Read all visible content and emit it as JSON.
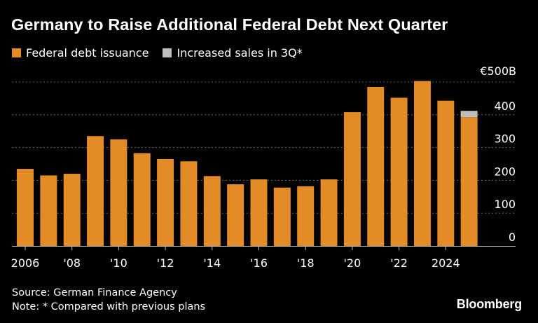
{
  "title": "Germany to Raise Additional Federal Debt Next Quarter",
  "legend": [
    {
      "label": "Federal debt issuance",
      "color": "#E38B26"
    },
    {
      "label": "Increased sales in 3Q*",
      "color": "#BDBDBD"
    }
  ],
  "footer": {
    "source": "Source: German Finance Agency",
    "note": "Note: * Compared with previous plans"
  },
  "brand": "Bloomberg",
  "chart_data": {
    "type": "bar",
    "stacked": true,
    "unit_label": "€500B",
    "categories": [
      "2006",
      "2007",
      "2008",
      "2009",
      "2010",
      "2011",
      "2012",
      "2013",
      "2014",
      "2015",
      "2016",
      "2017",
      "2018",
      "2019",
      "2020",
      "2021",
      "2022",
      "2023",
      "2024",
      "2025"
    ],
    "series": [
      {
        "name": "Federal debt issuance",
        "color": "#E38B26",
        "values": [
          235,
          215,
          220,
          335,
          325,
          283,
          265,
          258,
          213,
          188,
          203,
          178,
          182,
          203,
          408,
          485,
          452,
          503,
          443,
          393
        ]
      },
      {
        "name": "Increased sales in 3Q*",
        "color": "#BDBDBD",
        "values": [
          0,
          0,
          0,
          0,
          0,
          0,
          0,
          0,
          0,
          0,
          0,
          0,
          0,
          0,
          0,
          0,
          0,
          0,
          0,
          19
        ]
      }
    ],
    "xticks": [
      {
        "index": 0,
        "label": "2006"
      },
      {
        "index": 2,
        "label": "'08"
      },
      {
        "index": 4,
        "label": "'10"
      },
      {
        "index": 6,
        "label": "'12"
      },
      {
        "index": 8,
        "label": "'14"
      },
      {
        "index": 10,
        "label": "'16"
      },
      {
        "index": 12,
        "label": "'18"
      },
      {
        "index": 14,
        "label": "'20"
      },
      {
        "index": 16,
        "label": "'22"
      },
      {
        "index": 18,
        "label": "2024"
      }
    ],
    "yticks": [
      {
        "value": 400,
        "label": "400"
      },
      {
        "value": 300,
        "label": "300"
      },
      {
        "value": 200,
        "label": "200"
      },
      {
        "value": 100,
        "label": "100"
      },
      {
        "value": 0,
        "label": "0"
      }
    ],
    "ylim": [
      0,
      500
    ],
    "grid": true,
    "grid_color": "#666666",
    "axis_color": "#bfbfbf"
  }
}
